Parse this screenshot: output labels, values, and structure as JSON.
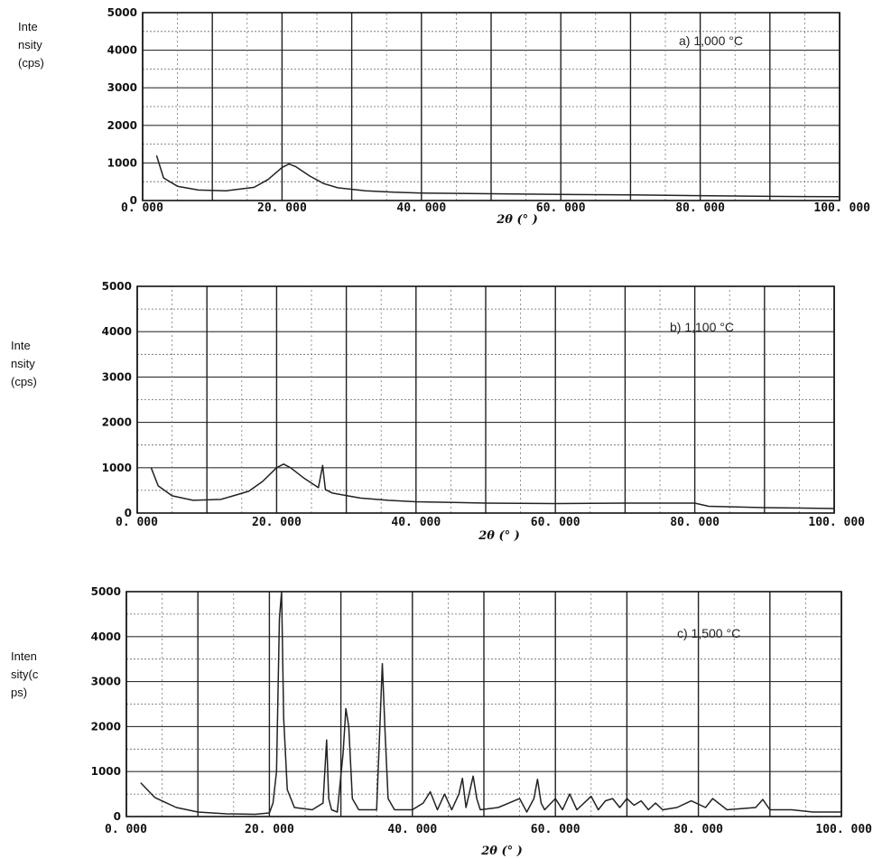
{
  "chart_data": [
    {
      "type": "line",
      "title": "a) 1,000 °C",
      "ylabel_lines": [
        "Inte",
        "nsity",
        "(cps)"
      ],
      "xlabel": "2θ  (° )",
      "xlim": [
        0,
        100
      ],
      "ylim": [
        0,
        5000
      ],
      "x_ticks": [
        "0. 000",
        "20. 000",
        "40. 000",
        "60. 000",
        "80. 000",
        "100. 000"
      ],
      "y_ticks": [
        "0",
        "1000",
        "2000",
        "3000",
        "4000",
        "5000"
      ],
      "grid": true,
      "x": [
        2,
        3,
        5,
        8,
        12,
        16,
        18,
        20,
        21,
        22,
        24,
        26,
        28,
        32,
        36,
        40,
        50,
        60,
        70,
        80,
        90,
        100
      ],
      "y": [
        1200,
        600,
        380,
        280,
        260,
        350,
        560,
        880,
        970,
        900,
        650,
        450,
        340,
        260,
        220,
        200,
        180,
        160,
        150,
        130,
        110,
        100
      ]
    },
    {
      "type": "line",
      "title": "b) 1,100 °C",
      "ylabel_lines": [
        "Inte",
        "nsity",
        "(cps)"
      ],
      "xlabel": "2θ  (° )",
      "xlim": [
        0,
        100
      ],
      "ylim": [
        0,
        5000
      ],
      "x_ticks": [
        "0. 000",
        "20. 000",
        "40. 000",
        "60. 000",
        "80. 000",
        "100. 000"
      ],
      "y_ticks": [
        "0",
        "1000",
        "2000",
        "3000",
        "4000",
        "5000"
      ],
      "grid": true,
      "x": [
        2,
        3,
        5,
        8,
        12,
        16,
        18,
        20,
        21,
        22,
        24,
        26,
        26.6,
        27,
        28,
        32,
        36,
        40,
        50,
        60,
        70,
        80,
        82,
        90,
        100
      ],
      "y": [
        1000,
        600,
        380,
        280,
        300,
        480,
        700,
        1000,
        1080,
        1000,
        760,
        560,
        1050,
        520,
        440,
        330,
        280,
        250,
        220,
        210,
        220,
        220,
        150,
        120,
        100
      ]
    },
    {
      "type": "line",
      "title": "c) 1,500 °C",
      "ylabel_lines": [
        "Inten",
        "sity(c",
        "ps)"
      ],
      "xlabel": "2θ  (° )",
      "xlim": [
        0,
        100
      ],
      "ylim": [
        0,
        5000
      ],
      "x_ticks": [
        "0. 000",
        "20. 000",
        "40. 000",
        "60. 000",
        "80. 000",
        "100. 000"
      ],
      "y_ticks": [
        "0",
        "1000",
        "2000",
        "3000",
        "4000",
        "5000"
      ],
      "grid": true,
      "x": [
        2,
        4,
        7,
        10,
        14,
        18,
        20,
        20.5,
        21,
        21.4,
        21.7,
        22,
        22.5,
        23.5,
        26,
        27.5,
        28,
        28.3,
        28.7,
        29.5,
        30.3,
        30.7,
        31.1,
        31.6,
        32.5,
        35,
        35.8,
        36.2,
        36.6,
        37.5,
        40,
        41.5,
        42.5,
        43.5,
        44.5,
        45.5,
        46.5,
        47,
        47.5,
        48.5,
        49,
        49.5,
        52,
        55,
        56,
        57,
        57.5,
        58,
        58.5,
        60,
        61,
        62,
        63,
        64,
        65,
        66,
        67,
        68,
        69,
        70,
        71,
        72,
        73,
        74,
        75,
        77,
        79,
        81,
        82,
        84,
        88,
        89,
        90,
        93,
        96,
        100
      ],
      "y": [
        750,
        420,
        200,
        100,
        60,
        50,
        80,
        300,
        1000,
        4400,
        5000,
        2200,
        600,
        200,
        150,
        300,
        1700,
        400,
        150,
        100,
        1400,
        2400,
        2000,
        400,
        150,
        150,
        3400,
        1800,
        400,
        150,
        150,
        300,
        550,
        150,
        500,
        150,
        500,
        850,
        200,
        900,
        400,
        150,
        200,
        400,
        100,
        400,
        830,
        300,
        150,
        400,
        150,
        500,
        150,
        300,
        450,
        150,
        350,
        400,
        200,
        400,
        250,
        350,
        150,
        300,
        150,
        200,
        350,
        200,
        400,
        150,
        200,
        380,
        150,
        150,
        100,
        100
      ]
    }
  ]
}
